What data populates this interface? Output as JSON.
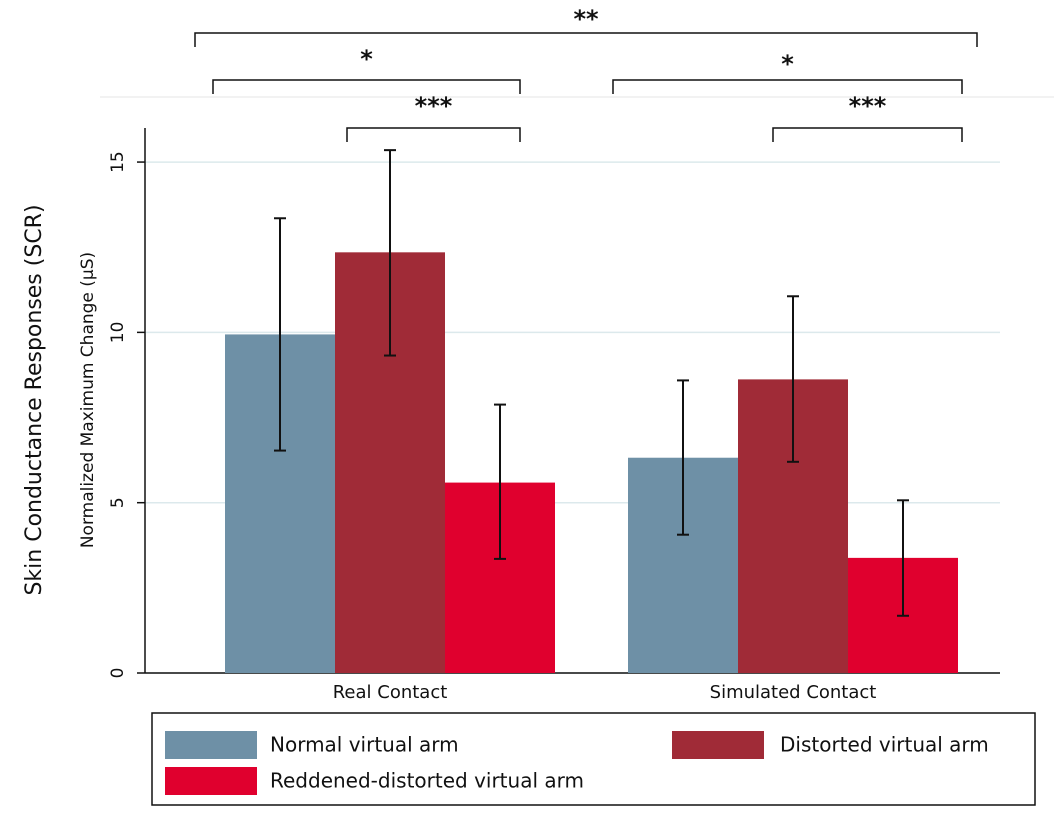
{
  "chart_data": {
    "type": "bar",
    "ylabel": "Normalized Maximum Change (μS)",
    "ylabel_outer": "Skin Conductance Responses (SCR)",
    "categories": [
      "Real Contact",
      "Simulated Contact"
    ],
    "series": [
      {
        "name": "Normal virtual arm",
        "color": "#6e90a6",
        "values": [
          9.94,
          6.32
        ],
        "lower": [
          6.53,
          4.06
        ],
        "upper": [
          13.35,
          8.59
        ]
      },
      {
        "name": "Distorted virtual arm",
        "color": "#a02b37",
        "values": [
          12.35,
          8.62
        ],
        "lower": [
          9.32,
          6.2
        ],
        "upper": [
          15.35,
          11.06
        ]
      },
      {
        "name": "Reddened-distorted virtual arm",
        "color": "#e0002e",
        "values": [
          5.59,
          3.38
        ],
        "lower": [
          3.35,
          1.68
        ],
        "upper": [
          7.88,
          5.07
        ]
      }
    ],
    "ylim": [
      0,
      16
    ],
    "yticks": [
      0,
      5,
      10,
      15
    ],
    "grid": true,
    "annotations": [
      {
        "label": "**"
      },
      {
        "label": "*"
      },
      {
        "label": "*"
      },
      {
        "label": "***"
      },
      {
        "label": "***"
      }
    ]
  }
}
